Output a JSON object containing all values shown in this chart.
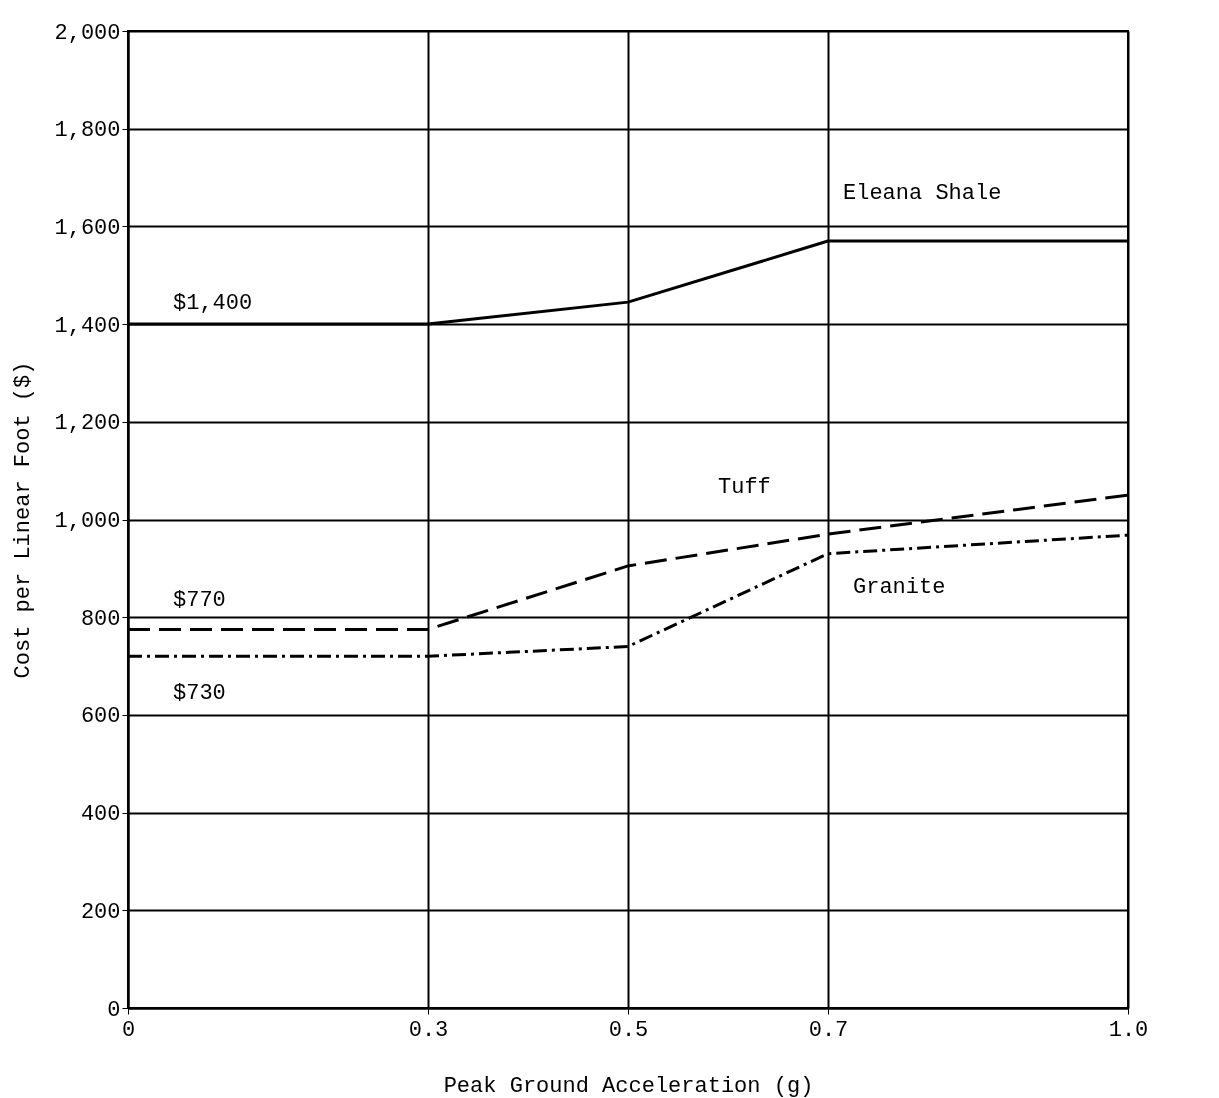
{
  "chart_data": {
    "type": "line",
    "xlabel": "Peak Ground Acceleration (g)",
    "ylabel": "Cost per Linear Foot ($)",
    "x": [
      0,
      0.3,
      0.5,
      0.7,
      1.0
    ],
    "series": [
      {
        "name": "Eleana Shale",
        "color": "#000000",
        "line_style": "solid",
        "values": [
          1400,
          1400,
          1445,
          1570,
          1570
        ]
      },
      {
        "name": "Tuff",
        "color": "#000000",
        "line_style": "dashed",
        "values": [
          775,
          775,
          905,
          970,
          1050
        ]
      },
      {
        "name": "Granite",
        "color": "#000000",
        "line_style": "dashdot",
        "values": [
          720,
          720,
          740,
          930,
          968
        ]
      }
    ],
    "xlim": [
      0,
      1.0
    ],
    "xticks": [
      0,
      0.3,
      0.5,
      0.7,
      {
        "value": 1,
        "label": "1.0"
      }
    ],
    "ylim": [
      0,
      2000
    ],
    "yticks": [
      0,
      200,
      400,
      600,
      800,
      {
        "value": 1000,
        "label": "1,000"
      },
      {
        "value": 1200,
        "label": "1,200"
      },
      {
        "value": 1400,
        "label": "1,400"
      },
      {
        "value": 1600,
        "label": "1,600"
      },
      {
        "value": 1800,
        "label": "1,800"
      },
      {
        "value": 2000,
        "label": "2,000"
      }
    ],
    "annotations": [
      {
        "text": "$1,400",
        "y": 1400
      },
      {
        "text": "$770",
        "y": 775
      },
      {
        "text": "$730",
        "y": 720
      }
    ],
    "grid": true,
    "legend": false,
    "marker": "none"
  }
}
